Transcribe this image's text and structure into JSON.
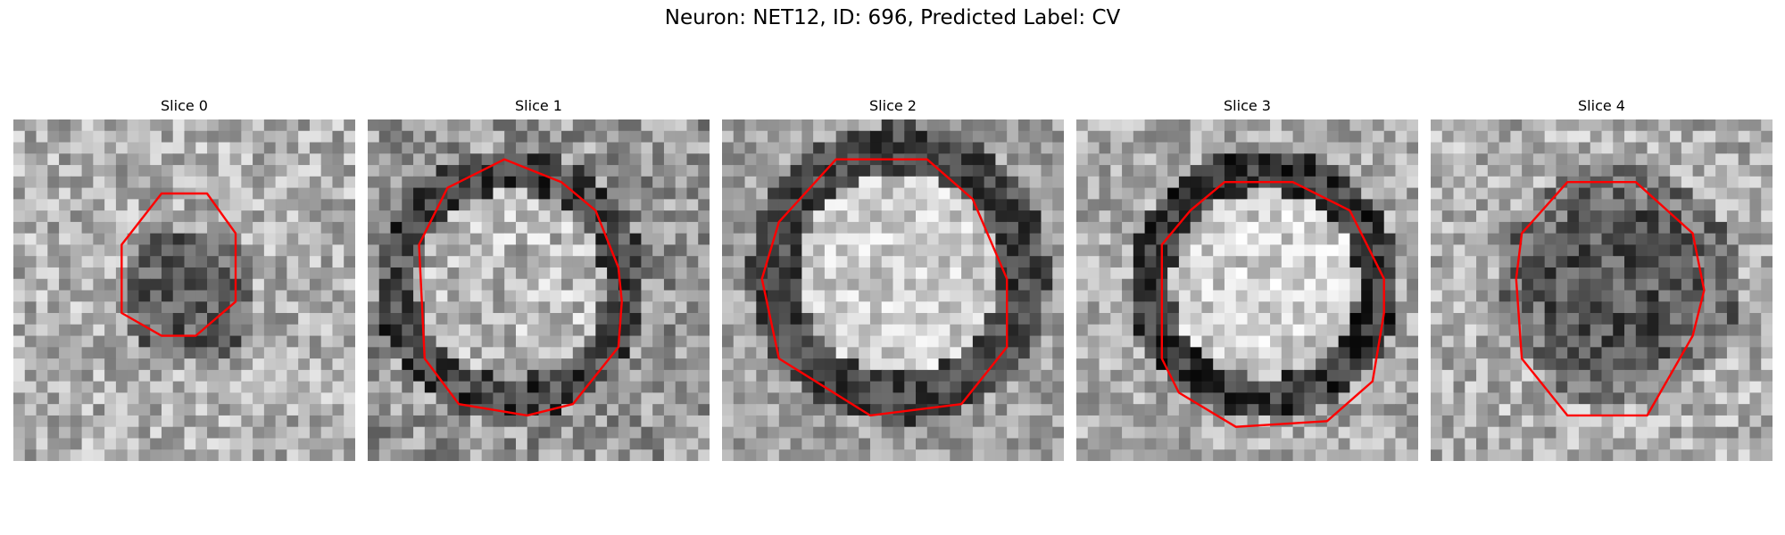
{
  "figure": {
    "title": "Neuron: NET12, ID: 696, Predicted Label: CV"
  },
  "contour_color": "#ff0000",
  "panels": [
    {
      "title": "Slice 0",
      "tone": "small-dark-blob"
    },
    {
      "title": "Slice 1",
      "tone": "bright-upper-left"
    },
    {
      "title": "Slice 2",
      "tone": "bright-center"
    },
    {
      "title": "Slice 3",
      "tone": "bright-center-dark-rim"
    },
    {
      "title": "Slice 4",
      "tone": "dark-center"
    }
  ]
}
